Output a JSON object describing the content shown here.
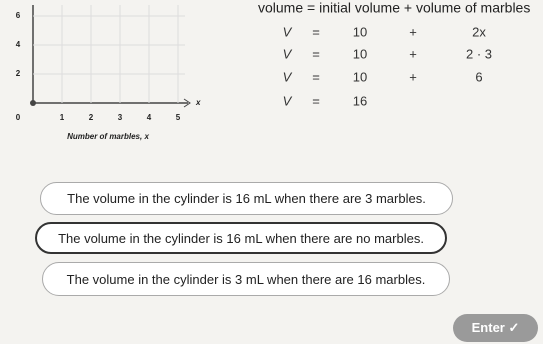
{
  "graph": {
    "x_axis_label": "Number of marbles, x",
    "x_var": "x",
    "xticks": [
      0,
      1,
      2,
      3,
      4,
      5
    ],
    "yticks": [
      2,
      4,
      6
    ]
  },
  "work": {
    "heading": "volume = initial volume + volume of marbles",
    "rows": [
      [
        "V",
        "=",
        "10",
        "+",
        "2x"
      ],
      [
        "V",
        "=",
        "10",
        "+",
        "2 · 3"
      ],
      [
        "V",
        "=",
        "10",
        "+",
        "6"
      ],
      [
        "V",
        "=",
        "16"
      ]
    ]
  },
  "choices": [
    "The volume in the cylinder is 16 mL when there are 3 marbles.",
    "The volume in the cylinder is 16 mL when there are no marbles.",
    "The volume in the cylinder is 3 mL when there are 16 marbles."
  ],
  "enter_button": "Enter ✓"
}
